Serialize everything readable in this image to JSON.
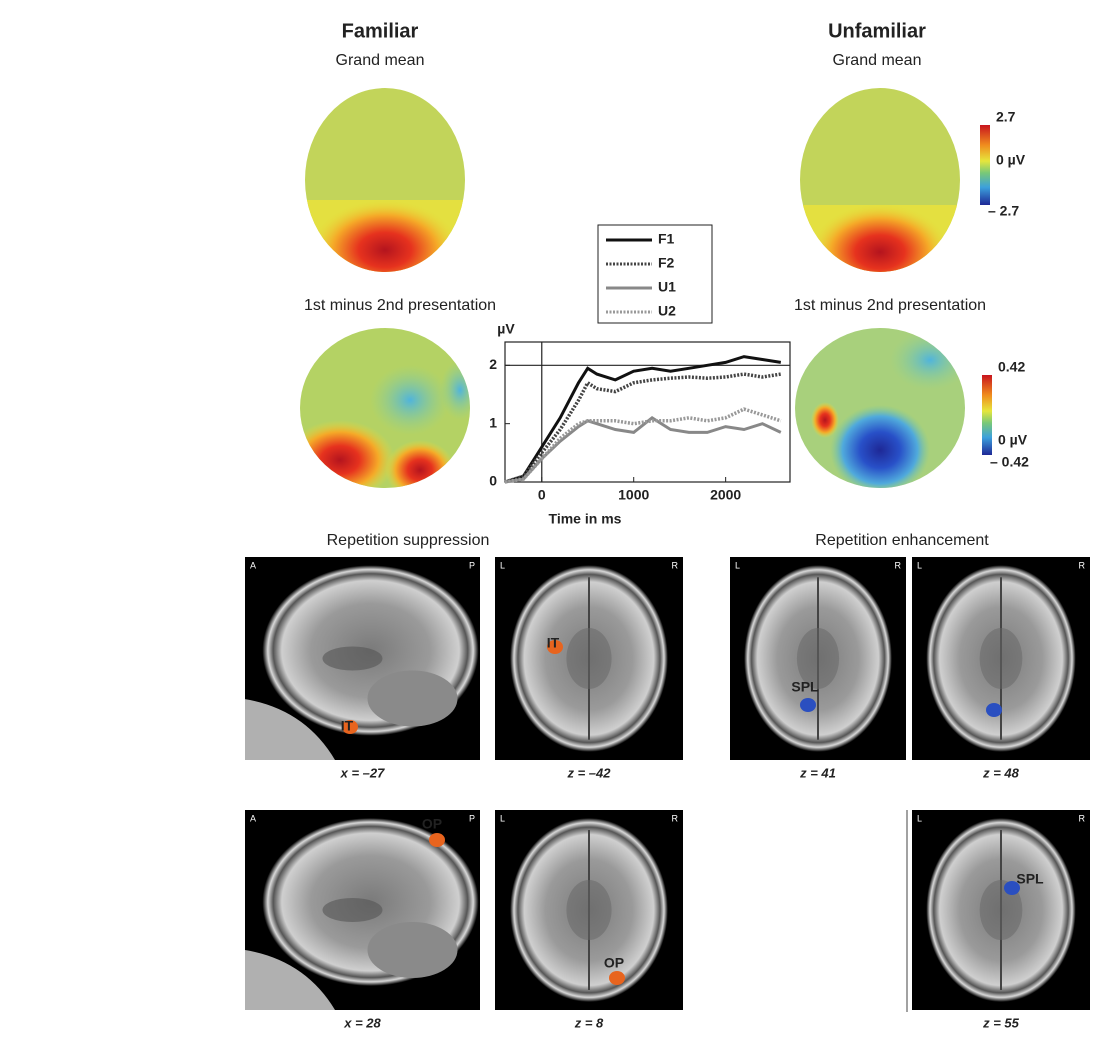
{
  "topography": {
    "familiar": {
      "title": "Familiar",
      "subtitle": "Grand mean",
      "difference": "1st minus 2nd presentation"
    },
    "unfamiliar": {
      "title": "Unfamiliar",
      "subtitle": "Grand mean",
      "difference": "1st minus 2nd presentation"
    },
    "colorbars": [
      {
        "top": "2.7",
        "middle": "0 µV",
        "bottom": "– 2.7"
      },
      {
        "top": "0.42",
        "middle": "0 µV",
        "bottom": "– 0.42"
      }
    ]
  },
  "chart_data": {
    "type": "line",
    "y_label": "µV",
    "x_label": "Time in ms",
    "x": [
      -400,
      -200,
      0,
      200,
      400,
      500,
      600,
      800,
      1000,
      1200,
      1400,
      1600,
      1800,
      2000,
      2200,
      2400,
      2600
    ],
    "series": [
      {
        "name": "F1",
        "color": "#111111",
        "style": "solid",
        "values": [
          0,
          0.1,
          0.6,
          1.1,
          1.7,
          1.95,
          1.85,
          1.75,
          1.9,
          1.95,
          1.9,
          1.95,
          2.0,
          2.05,
          2.15,
          2.1,
          2.05
        ]
      },
      {
        "name": "F2",
        "color": "#444444",
        "style": "dotted",
        "values": [
          0,
          0.1,
          0.5,
          0.9,
          1.4,
          1.7,
          1.6,
          1.55,
          1.7,
          1.75,
          1.78,
          1.8,
          1.78,
          1.8,
          1.85,
          1.8,
          1.85
        ]
      },
      {
        "name": "U1",
        "color": "#888888",
        "style": "solid",
        "values": [
          0,
          0.05,
          0.4,
          0.7,
          0.95,
          1.05,
          1.0,
          0.9,
          0.85,
          1.1,
          0.9,
          0.85,
          0.85,
          0.95,
          0.9,
          1.0,
          0.85
        ]
      },
      {
        "name": "U2",
        "color": "#999999",
        "style": "dotted",
        "values": [
          0,
          0.05,
          0.4,
          0.75,
          1.0,
          1.05,
          1.05,
          1.05,
          1.0,
          1.05,
          1.05,
          1.1,
          1.05,
          1.1,
          1.25,
          1.15,
          1.05
        ]
      }
    ],
    "xlim": [
      -400,
      2700
    ],
    "ylim": [
      0,
      2.4
    ],
    "xticks": [
      0,
      1000,
      2000
    ],
    "yticks": [
      0,
      1,
      2
    ],
    "hlines": [
      2
    ],
    "vlines": [
      0
    ]
  },
  "brain": {
    "suppression": {
      "title": "Repetition suppression",
      "color": "#e8641e",
      "images": [
        {
          "caption": "x = –27",
          "corners": [
            "A",
            "P"
          ],
          "label": "IT"
        },
        {
          "caption": "z = –42",
          "corners": [
            "L",
            "R"
          ],
          "label": "IT"
        },
        {
          "caption": "x = 28",
          "corners": [
            "A",
            "P"
          ],
          "label": "OP"
        },
        {
          "caption": "z = 8",
          "corners": [
            "L",
            "R"
          ],
          "label": "OP"
        }
      ]
    },
    "enhancement": {
      "title": "Repetition enhancement",
      "color": "#2a4fc0",
      "images": [
        {
          "caption": "z = 41",
          "corners": [
            "L",
            "R"
          ],
          "label": "SPL"
        },
        {
          "caption": "z = 48",
          "corners": [
            "L",
            "R"
          ]
        },
        {
          "caption": "z = 55",
          "corners": [
            "L",
            "R"
          ],
          "label": "SPL"
        }
      ]
    }
  }
}
